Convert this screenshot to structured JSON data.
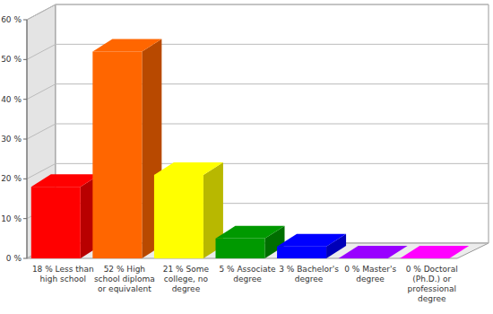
{
  "chart_data": {
    "type": "bar",
    "categories": [
      "18 % Less than high school",
      "52 % High school diploma or equivalent",
      "21 % Some college, no degree",
      "5 % Associate degree",
      "3 % Bachelor's degree",
      "0 % Master's degree",
      "0 % Doctoral (Ph.D.) or professional degree"
    ],
    "values": [
      18,
      52,
      21,
      5,
      3,
      0,
      0
    ],
    "colors": [
      "#ff0000",
      "#ff6600",
      "#ffff00",
      "#009900",
      "#0000ff",
      "#9900ff",
      "#ff00ff"
    ],
    "ylim": [
      0,
      60
    ],
    "yticks": [
      {
        "value": 0,
        "label": "0 %"
      },
      {
        "value": 10,
        "label": "10 %"
      },
      {
        "value": 20,
        "label": "20 %"
      },
      {
        "value": 30,
        "label": "30 %"
      },
      {
        "value": 40,
        "label": "40 %"
      },
      {
        "value": 50,
        "label": "50 %"
      },
      {
        "value": 60,
        "label": "60 %"
      }
    ],
    "grid": true
  }
}
